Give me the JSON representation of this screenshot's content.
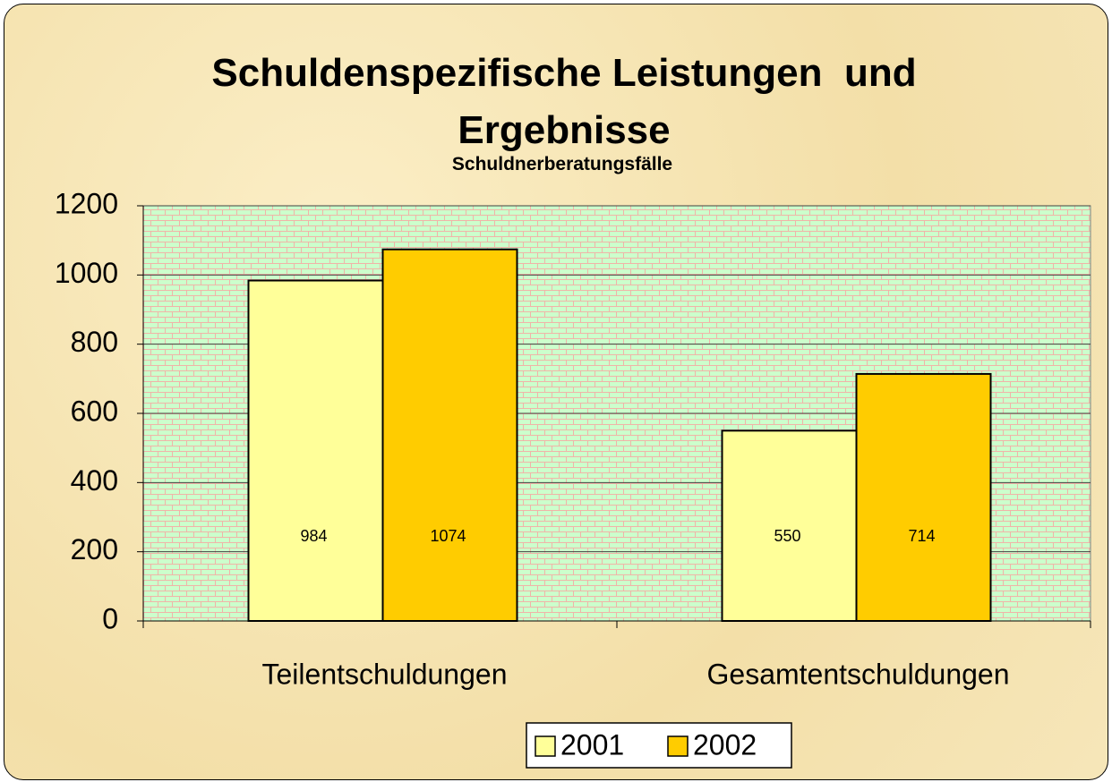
{
  "chart_data": {
    "type": "bar",
    "title": "Schuldenspezifische Leistungen  und Ergebnisse",
    "subtitle": "Schuldnerberatungsfälle",
    "categories": [
      "Teilentschuldungen",
      "Gesamtentschuldungen"
    ],
    "series": [
      {
        "name": "2001",
        "color": "#ffff99",
        "values": [
          984,
          550
        ]
      },
      {
        "name": "2002",
        "color": "#ffcc00",
        "values": [
          1074,
          714
        ]
      }
    ],
    "ylim": [
      0,
      1200
    ],
    "yticks": [
      0,
      200,
      400,
      600,
      800,
      1000,
      1200
    ],
    "grid": true,
    "legend": "bottom"
  }
}
